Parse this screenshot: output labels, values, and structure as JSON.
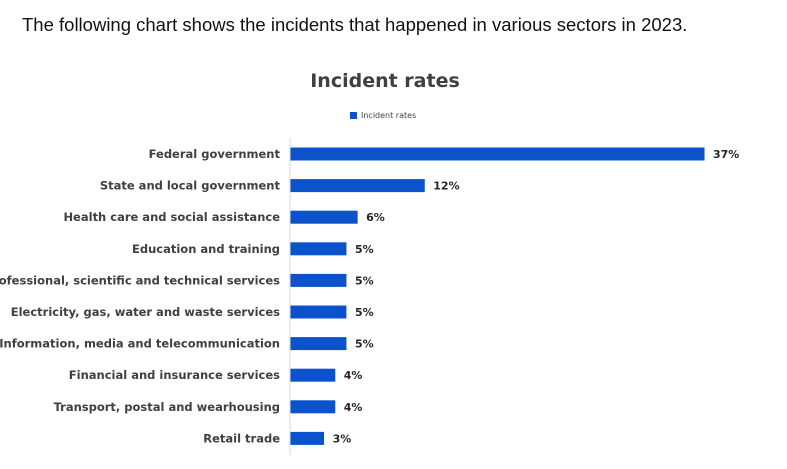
{
  "intro_text": "The following chart shows the incidents that happened in various sectors in 2023.",
  "chart_data": {
    "type": "bar",
    "orientation": "horizontal",
    "title": "Incident rates",
    "legend": "top",
    "series": [
      {
        "name": "Incident rates",
        "color": "#0B52CC"
      }
    ],
    "categories": [
      "Federal government",
      "State and local government",
      "Health care and social assistance",
      "Education and training",
      "Professional, scientific and technical services",
      "Electricity, gas, water and waste services",
      "Information, media and telecommunication",
      "Financial and insurance services",
      "Transport, postal and wearhousing",
      "Retail trade"
    ],
    "values": [
      37,
      12,
      6,
      5,
      5,
      5,
      5,
      4,
      4,
      3
    ],
    "value_labels": [
      "37%",
      "12%",
      "6%",
      "5%",
      "5%",
      "5%",
      "5%",
      "4%",
      "4%",
      "3%"
    ],
    "xlim": [
      0,
      37
    ],
    "grid": false
  }
}
